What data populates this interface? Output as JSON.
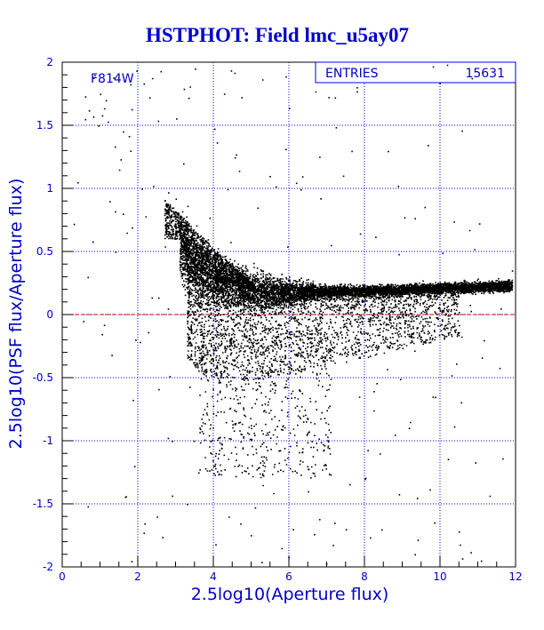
{
  "colors": {
    "background": "#ffffff",
    "frame": "#000000",
    "grid": "#0000ee",
    "text": "#0000cc",
    "points": "#000000",
    "reference_line": "#cc0000"
  },
  "chart_data": {
    "type": "scatter",
    "title": "HSTPHOT: Field lmc_u5ay07",
    "xlabel": "2.5log10(Aperture flux)",
    "ylabel": "2.5log10(PSF flux/Aperture flux)",
    "xlim": [
      0,
      12
    ],
    "ylim": [
      -2,
      2
    ],
    "xticks": [
      0,
      2,
      4,
      6,
      8,
      10,
      12
    ],
    "yticks": [
      -2,
      -1.5,
      -1,
      -0.5,
      0,
      0.5,
      1,
      1.5,
      2
    ],
    "xtick_labels": [
      "0",
      "2",
      "4",
      "6",
      "8",
      "10",
      "12"
    ],
    "ytick_labels": [
      "-2",
      "-1.5",
      "-1",
      "-0.5",
      "0",
      "0.5",
      "1",
      "1.5",
      "2"
    ],
    "grid": true,
    "reference_line_y": 0,
    "filter_label": "F814W",
    "stats": {
      "label": "ENTRIES",
      "value": "15631"
    },
    "entries": 15631,
    "series": [
      {
        "locus": [
          [
            3,
            0.6
          ],
          [
            3.5,
            0.38
          ],
          [
            4,
            0.27
          ],
          [
            5,
            0.2
          ],
          [
            6,
            0.18
          ],
          [
            8,
            0.19
          ],
          [
            10,
            0.21
          ],
          [
            11.8,
            0.23
          ]
        ],
        "sampled_points": [
          [
            0.4,
            1.05
          ],
          [
            0.6,
            1.55
          ],
          [
            0.7,
            1.62
          ],
          [
            0.85,
            1.9
          ],
          [
            0.95,
            1.5
          ],
          [
            1.0,
            1.75
          ],
          [
            1.05,
            1.58
          ],
          [
            1.15,
            1.7
          ],
          [
            1.2,
            1.53
          ],
          [
            1.35,
            1.88
          ],
          [
            1.5,
            1.15
          ],
          [
            1.6,
            0.8
          ],
          [
            1.7,
            0.65
          ],
          [
            1.8,
            1.3
          ],
          [
            2.1,
            1.0
          ],
          [
            2.2,
            0.78
          ],
          [
            2.4,
            1.02
          ],
          [
            2.6,
            1.93
          ],
          [
            2.8,
            0.97
          ],
          [
            3.0,
            0.92
          ],
          [
            3.2,
            1.2
          ],
          [
            1.25,
            0.9
          ],
          [
            0.3,
            0.72
          ],
          [
            0.8,
            0.58
          ],
          [
            1.4,
            0.5
          ],
          [
            1.1,
            -0.08
          ],
          [
            1.3,
            -0.32
          ],
          [
            0.55,
            -0.05
          ],
          [
            2.5,
            -1.6
          ],
          [
            2.9,
            -1.0
          ],
          [
            3.3,
            -1.5
          ],
          [
            3.6,
            -1.25
          ],
          [
            3.9,
            -0.9
          ],
          [
            4.4,
            -1.6
          ],
          [
            4.6,
            -1.1
          ],
          [
            5.3,
            -1.35
          ],
          [
            5.8,
            -1.85
          ],
          [
            6.1,
            -1.7
          ],
          [
            6.5,
            -1.4
          ],
          [
            6.8,
            -1.62
          ],
          [
            7.2,
            -1.65
          ],
          [
            7.5,
            -1.7
          ],
          [
            8.0,
            -1.3
          ],
          [
            8.4,
            -1.1
          ],
          [
            9.2,
            -0.85
          ],
          [
            9.8,
            -0.65
          ],
          [
            10.3,
            -0.48
          ],
          [
            11.1,
            -0.34
          ],
          [
            11.6,
            0.05
          ],
          [
            11.9,
            0.35
          ],
          [
            10.9,
            0.52
          ],
          [
            8.9,
            0.48
          ]
        ]
      }
    ]
  }
}
